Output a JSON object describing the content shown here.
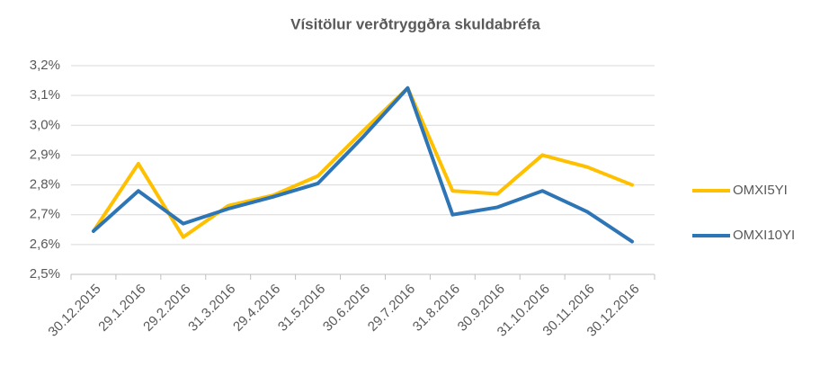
{
  "chart_data": {
    "type": "line",
    "title": "Vísitölur verðtryggðra skuldabréfa",
    "categories": [
      "30.12.2015",
      "29.1.2016",
      "29.2.2016",
      "31.3.2016",
      "29.4.2016",
      "31.5.2016",
      "30.6.2016",
      "29.7.2016",
      "31.8.2016",
      "30.9.2016",
      "31.10.2016",
      "30.11.2016",
      "30.12.2016"
    ],
    "series": [
      {
        "name": "OMXI5YI",
        "color": "#ffc000",
        "values": [
          2.645,
          2.871,
          2.625,
          2.73,
          2.765,
          2.83,
          2.98,
          3.125,
          2.78,
          2.77,
          2.9,
          2.86,
          2.8
        ]
      },
      {
        "name": "OMXI10YI",
        "color": "#2e75b6",
        "values": [
          2.645,
          2.78,
          2.67,
          2.72,
          2.76,
          2.805,
          2.96,
          3.125,
          2.7,
          2.725,
          2.78,
          2.71,
          2.61
        ]
      }
    ],
    "ylim": [
      2.5,
      3.2
    ],
    "yticks": [
      {
        "value": 2.5,
        "label": "2,5%"
      },
      {
        "value": 2.6,
        "label": "2,6%"
      },
      {
        "value": 2.7,
        "label": "2,7%"
      },
      {
        "value": 2.8,
        "label": "2,8%"
      },
      {
        "value": 2.9,
        "label": "2,9%"
      },
      {
        "value": 3.0,
        "label": "3,0%"
      },
      {
        "value": 3.1,
        "label": "3,1%"
      },
      {
        "value": 3.2,
        "label": "3,2%"
      }
    ],
    "grid": true,
    "legend": "right"
  }
}
